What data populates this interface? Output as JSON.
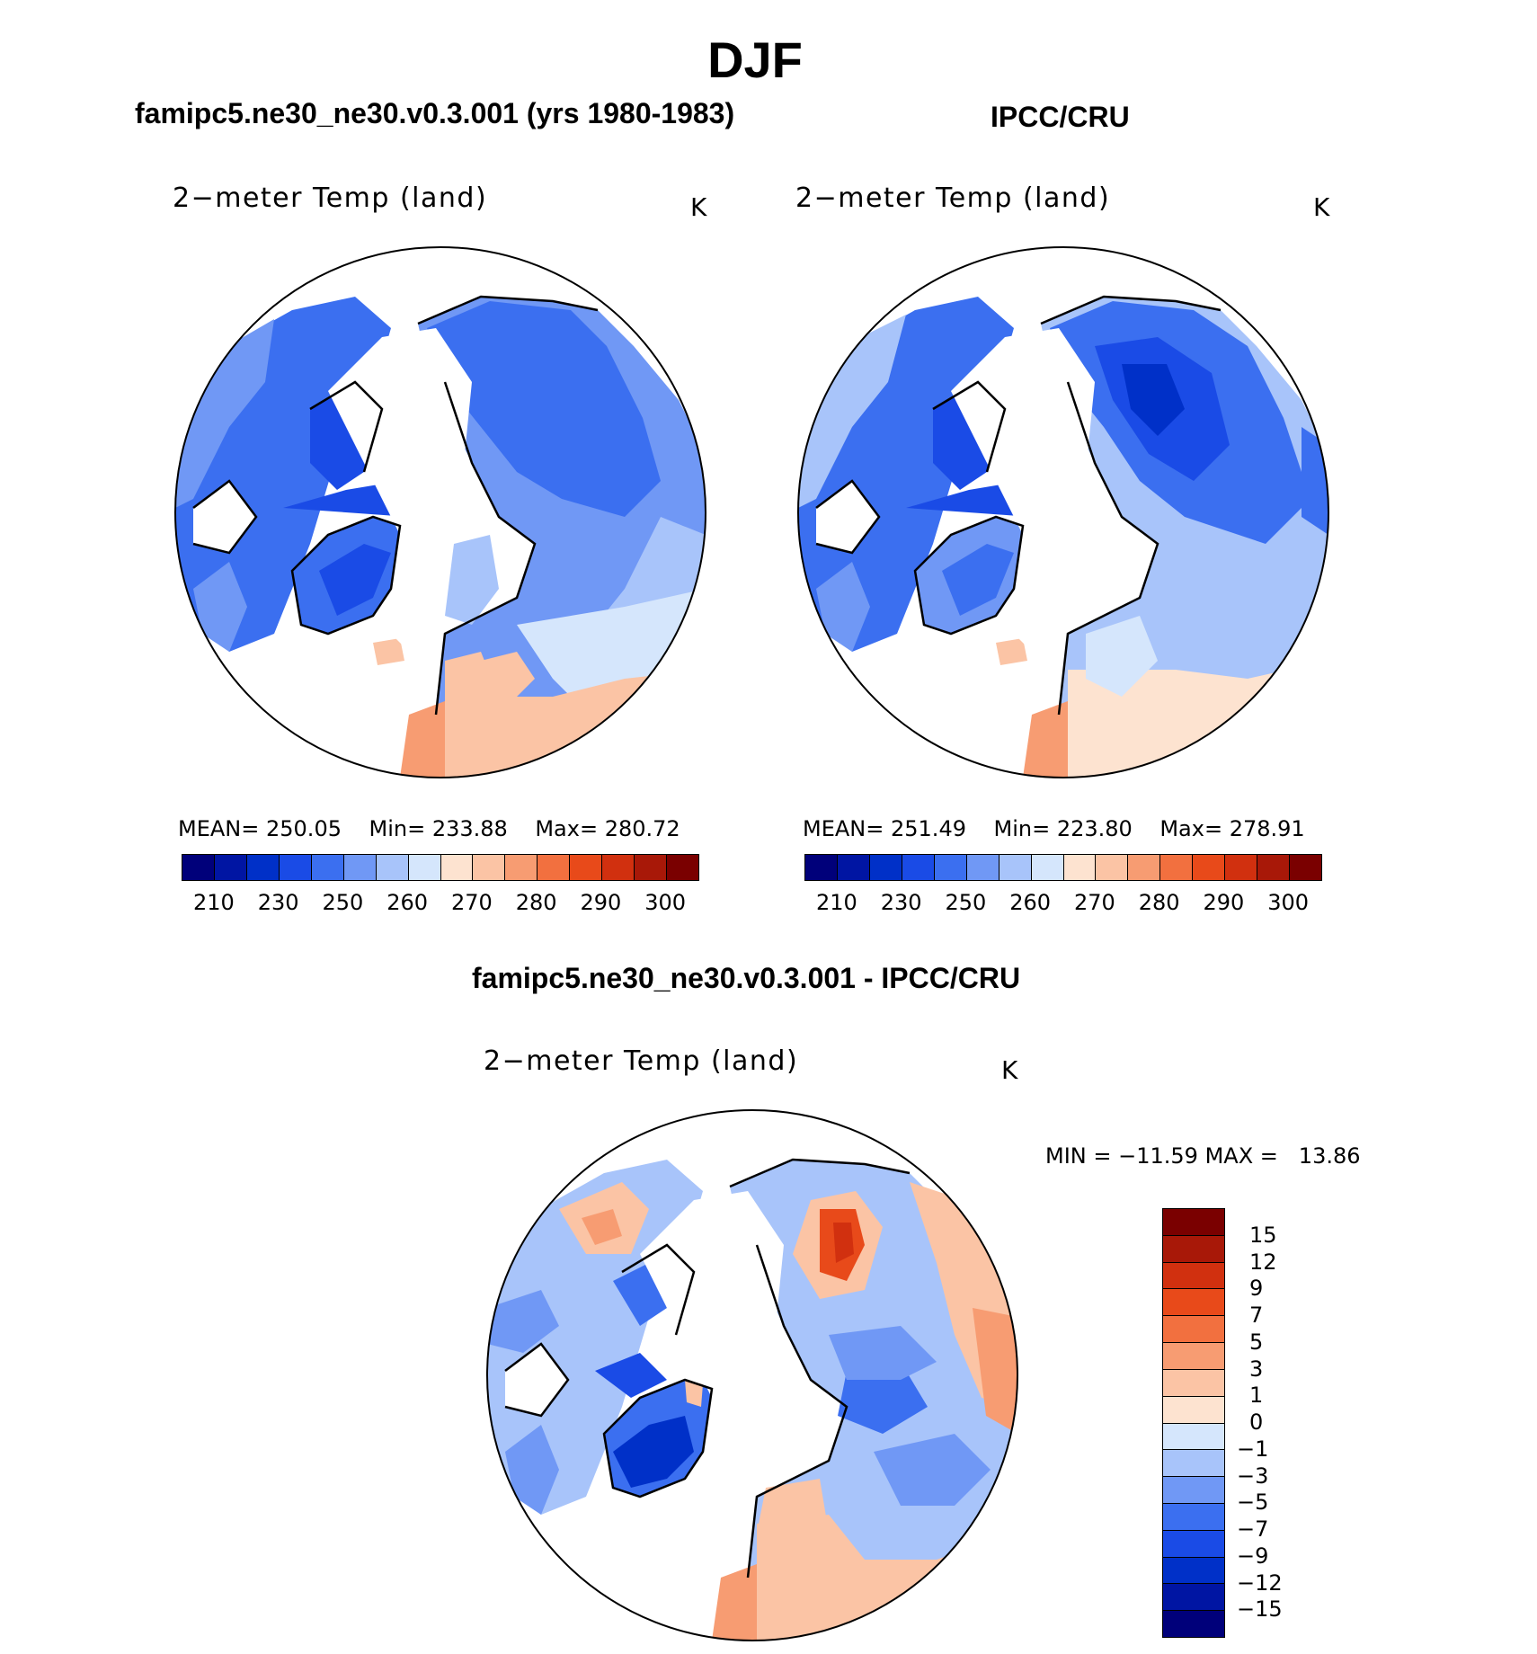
{
  "figure": {
    "season": "DJF",
    "left_header": "famipc5.ne30_ne30.v0.3.001 (yrs 1980-1983)",
    "right_header": "IPCC/CRU",
    "diff_header": "famipc5.ne30_ne30.v0.3.001 - IPCC/CRU"
  },
  "panels": [
    {
      "id": "model",
      "title": "2−meter Temp (land)",
      "units": "K",
      "stats": {
        "mean_label": "MEAN=",
        "mean": "250.05",
        "min_label": "Min=",
        "min": "233.88",
        "max_label": "Max=",
        "max": "280.72"
      },
      "colorbar": {
        "colors": [
          "#00007a",
          "#0015a3",
          "#0030c8",
          "#1a4be6",
          "#3b6ff0",
          "#7098f5",
          "#a8c4fa",
          "#d5e6fc",
          "#fde3d0",
          "#fbc4a5",
          "#f79c72",
          "#f2703f",
          "#e84a1a",
          "#d1300f",
          "#a81808",
          "#7a0000"
        ],
        "tick_labels": [
          "210",
          "230",
          "250",
          "260",
          "270",
          "280",
          "290",
          "300"
        ]
      }
    },
    {
      "id": "obs",
      "title": "2−meter Temp (land)",
      "units": "K",
      "stats": {
        "mean_label": "MEAN=",
        "mean": "251.49",
        "min_label": "Min=",
        "min": "223.80",
        "max_label": "Max=",
        "max": "278.91"
      },
      "colorbar": {
        "colors": [
          "#00007a",
          "#0015a3",
          "#0030c8",
          "#1a4be6",
          "#3b6ff0",
          "#7098f5",
          "#a8c4fa",
          "#d5e6fc",
          "#fde3d0",
          "#fbc4a5",
          "#f79c72",
          "#f2703f",
          "#e84a1a",
          "#d1300f",
          "#a81808",
          "#7a0000"
        ],
        "tick_labels": [
          "210",
          "230",
          "250",
          "260",
          "270",
          "280",
          "290",
          "300"
        ]
      }
    },
    {
      "id": "diff",
      "title": "2−meter Temp (land)",
      "units": "K",
      "stats": {
        "min_label": "MIN =",
        "min": "−11.59",
        "max_label": "MAX =",
        "max": "13.86"
      },
      "colorbar": {
        "colors_top_to_bottom": [
          "#7a0000",
          "#a81808",
          "#d1300f",
          "#e84a1a",
          "#f2703f",
          "#f79c72",
          "#fbc4a5",
          "#fde3d0",
          "#d5e6fc",
          "#a8c4fa",
          "#7098f5",
          "#3b6ff0",
          "#1a4be6",
          "#0030c8",
          "#0015a3",
          "#00007a"
        ],
        "tick_labels": [
          "15",
          "12",
          "9",
          "7",
          "5",
          "3",
          "1",
          "0",
          "−1",
          "−3",
          "−5",
          "−7",
          "−9",
          "−12",
          "−15"
        ]
      }
    }
  ]
}
